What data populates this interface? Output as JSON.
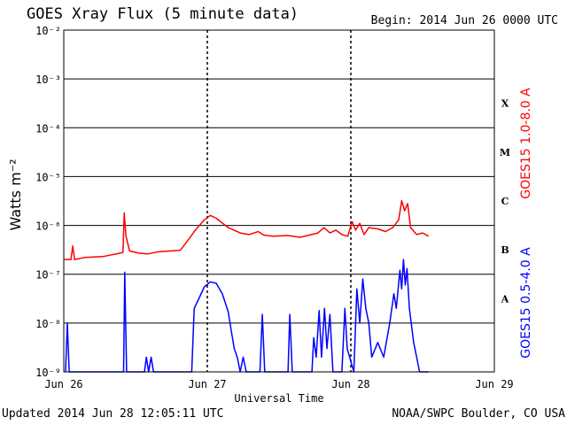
{
  "header": {
    "title": "GOES Xray Flux (5 minute data)",
    "begin": "Begin:  2014 Jun 26 0000 UTC"
  },
  "footer": {
    "updated": "Updated 2014 Jun 28 12:05:11 UTC",
    "credit": "NOAA/SWPC Boulder, CO USA"
  },
  "chart_data": {
    "type": "line",
    "xlabel": "Universal Time",
    "ylabel": "Watts m⁻²",
    "y_scale": "log",
    "ylim": [
      1e-09,
      0.01
    ],
    "xlim_hours": [
      0,
      72
    ],
    "x_ticks": [
      {
        "hours": 0,
        "label": "Jun 26"
      },
      {
        "hours": 24,
        "label": "Jun 27"
      },
      {
        "hours": 48,
        "label": "Jun 28"
      },
      {
        "hours": 72,
        "label": "Jun 29"
      }
    ],
    "y_ticks": [
      {
        "exp": -2,
        "label": "10⁻²"
      },
      {
        "exp": -3,
        "label": "10⁻³"
      },
      {
        "exp": -4,
        "label": "10⁻⁴"
      },
      {
        "exp": -5,
        "label": "10⁻⁵"
      },
      {
        "exp": -6,
        "label": "10⁻⁶"
      },
      {
        "exp": -7,
        "label": "10⁻⁷"
      },
      {
        "exp": -8,
        "label": "10⁻⁸"
      },
      {
        "exp": -9,
        "label": "10⁻⁹"
      }
    ],
    "flare_classes": [
      {
        "label": "X",
        "exp": -3.5
      },
      {
        "label": "M",
        "exp": -4.5
      },
      {
        "label": "C",
        "exp": -5.5
      },
      {
        "label": "B",
        "exp": -6.5
      },
      {
        "label": "A",
        "exp": -7.5
      }
    ],
    "grid": "horizontal solid at each decade, vertical dashed at day boundaries",
    "colors": {
      "long": "#ff0000",
      "short": "#0000ff"
    },
    "series": [
      {
        "name": "GOES15 1.0-8.0 A",
        "color": "#ff0000",
        "points": [
          [
            0.1,
            2e-07
          ],
          [
            1.2,
            2e-07
          ],
          [
            1.5,
            3.8e-07
          ],
          [
            1.8,
            2e-07
          ],
          [
            3.5,
            2.2e-07
          ],
          [
            6.5,
            2.3e-07
          ],
          [
            8.0,
            2.5e-07
          ],
          [
            9.9,
            2.8e-07
          ],
          [
            10.1,
            1.8e-06
          ],
          [
            10.4,
            6e-07
          ],
          [
            11.0,
            3e-07
          ],
          [
            12.5,
            2.7e-07
          ],
          [
            14.0,
            2.6e-07
          ],
          [
            16.0,
            2.9e-07
          ],
          [
            18.0,
            3e-07
          ],
          [
            19.5,
            3.1e-07
          ],
          [
            20.5,
            4.5e-07
          ],
          [
            22.0,
            8e-07
          ],
          [
            23.5,
            1.3e-06
          ],
          [
            24.5,
            1.6e-06
          ],
          [
            25.5,
            1.4e-06
          ],
          [
            27.5,
            9e-07
          ],
          [
            29.5,
            7e-07
          ],
          [
            31.0,
            6.5e-07
          ],
          [
            32.5,
            7.5e-07
          ],
          [
            33.5,
            6.3e-07
          ],
          [
            35.0,
            6e-07
          ],
          [
            37.5,
            6.2e-07
          ],
          [
            39.5,
            5.7e-07
          ],
          [
            41.0,
            6.3e-07
          ],
          [
            42.5,
            7e-07
          ],
          [
            43.5,
            9e-07
          ],
          [
            44.5,
            7e-07
          ],
          [
            45.5,
            8e-07
          ],
          [
            46.5,
            6.5e-07
          ],
          [
            47.5,
            6e-07
          ],
          [
            48.2,
            1.2e-06
          ],
          [
            48.8,
            8e-07
          ],
          [
            49.5,
            1.1e-06
          ],
          [
            50.2,
            6.5e-07
          ],
          [
            51.0,
            9e-07
          ],
          [
            52.5,
            8.5e-07
          ],
          [
            53.8,
            7.5e-07
          ],
          [
            55.0,
            9e-07
          ],
          [
            56.0,
            1.3e-06
          ],
          [
            56.5,
            3.2e-06
          ],
          [
            57.0,
            2e-06
          ],
          [
            57.5,
            2.8e-06
          ],
          [
            58.0,
            9e-07
          ],
          [
            59.0,
            6.5e-07
          ],
          [
            60.0,
            7e-07
          ],
          [
            61.0,
            6e-07
          ]
        ]
      },
      {
        "name": "GOES15 0.5-4.0 A",
        "color": "#0000ff",
        "points": [
          [
            0.3,
            1e-09
          ],
          [
            0.6,
            1e-08
          ],
          [
            0.9,
            1e-09
          ],
          [
            6.0,
            1e-09
          ],
          [
            10.0,
            1e-09
          ],
          [
            10.2,
            1.1e-07
          ],
          [
            10.5,
            1e-09
          ],
          [
            13.5,
            1e-09
          ],
          [
            13.8,
            2e-09
          ],
          [
            14.2,
            1e-09
          ],
          [
            14.6,
            2e-09
          ],
          [
            15.0,
            1e-09
          ],
          [
            21.4,
            1e-09
          ],
          [
            21.8,
            2e-08
          ],
          [
            22.5,
            3e-08
          ],
          [
            23.5,
            5.5e-08
          ],
          [
            24.5,
            7e-08
          ],
          [
            25.5,
            6.5e-08
          ],
          [
            26.5,
            4e-08
          ],
          [
            27.5,
            1.7e-08
          ],
          [
            28.0,
            7e-09
          ],
          [
            28.5,
            3e-09
          ],
          [
            29.0,
            2e-09
          ],
          [
            29.5,
            1e-09
          ],
          [
            30.0,
            2e-09
          ],
          [
            30.5,
            1e-09
          ],
          [
            32.8,
            1e-09
          ],
          [
            33.2,
            1.5e-08
          ],
          [
            33.6,
            1e-09
          ],
          [
            37.5,
            1e-09
          ],
          [
            37.8,
            1.5e-08
          ],
          [
            38.2,
            1e-09
          ],
          [
            41.5,
            1e-09
          ],
          [
            41.8,
            5e-09
          ],
          [
            42.2,
            2e-09
          ],
          [
            42.7,
            1.8e-08
          ],
          [
            43.1,
            2e-09
          ],
          [
            43.6,
            2e-08
          ],
          [
            44.0,
            3e-09
          ],
          [
            44.5,
            1.5e-08
          ],
          [
            45.0,
            1e-09
          ],
          [
            46.5,
            1e-09
          ],
          [
            47.0,
            2e-08
          ],
          [
            47.4,
            3e-09
          ],
          [
            48.5,
            1e-09
          ],
          [
            49.0,
            5e-08
          ],
          [
            49.5,
            1e-08
          ],
          [
            50.0,
            8e-08
          ],
          [
            50.5,
            2e-08
          ],
          [
            51.0,
            1e-08
          ],
          [
            51.5,
            2e-09
          ],
          [
            52.5,
            4e-09
          ],
          [
            53.5,
            2e-09
          ],
          [
            54.5,
            1e-08
          ],
          [
            55.2,
            4e-08
          ],
          [
            55.6,
            2e-08
          ],
          [
            56.2,
            1.2e-07
          ],
          [
            56.5,
            5e-08
          ],
          [
            56.8,
            2e-07
          ],
          [
            57.1,
            6e-08
          ],
          [
            57.4,
            1.3e-07
          ],
          [
            57.8,
            2e-08
          ],
          [
            58.5,
            4e-09
          ],
          [
            59.0,
            2e-09
          ],
          [
            59.5,
            1e-09
          ],
          [
            61.0,
            1e-09
          ]
        ]
      }
    ]
  }
}
